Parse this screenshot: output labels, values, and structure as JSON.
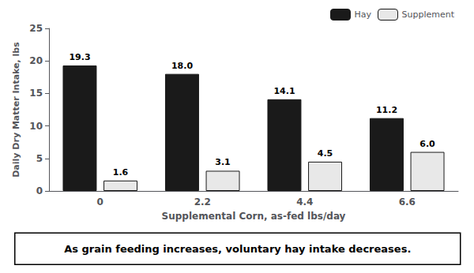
{
  "chart_data": {
    "type": "bar",
    "categories": [
      "0",
      "2.2",
      "4.4",
      "6.6"
    ],
    "series": [
      {
        "name": "Hay",
        "color": "#1a1a1a",
        "values": [
          19.3,
          18.0,
          14.1,
          11.2
        ],
        "value_labels": [
          "19.3",
          "18.0",
          "14.1",
          "11.2"
        ]
      },
      {
        "name": "Supplement",
        "color": "#e8e8e8",
        "values": [
          1.6,
          3.1,
          4.5,
          6.0
        ],
        "value_labels": [
          "1.6",
          "3.1",
          "4.5",
          "6.0"
        ]
      }
    ],
    "xlabel": "Supplemental Corn, as-fed lbs/day",
    "ylabel": "Daily Dry Matter Intake, lbs",
    "ylim": [
      0,
      25
    ],
    "yticks": [
      0,
      5,
      10,
      15,
      20,
      25
    ],
    "grid": false,
    "legend": "upper right",
    "data_labels": true,
    "caption": "As grain feeding increases, voluntary hay intake decreases."
  }
}
